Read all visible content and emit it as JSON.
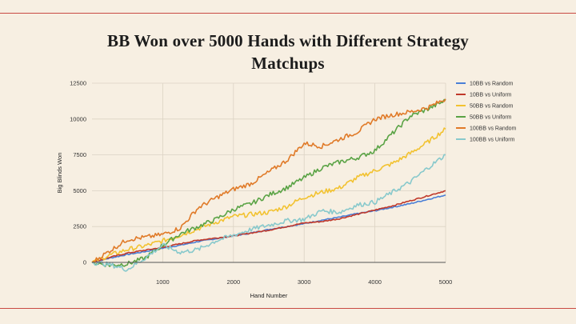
{
  "slide": {
    "title_line1": "BB Won over 5000 Hands with Different Strategy",
    "title_line2": "Matchups"
  },
  "chart_data": {
    "type": "line",
    "xlabel": "Hand Number",
    "ylabel": "Big Blinds Won",
    "xlim": [
      0,
      5000
    ],
    "ylim": [
      0,
      12500
    ],
    "x_ticks": [
      1000,
      2000,
      3000,
      4000,
      5000
    ],
    "y_ticks": [
      0,
      2500,
      5000,
      7500,
      10000,
      12500
    ],
    "grid": true,
    "legend_position": "right",
    "x": [
      0,
      250,
      500,
      750,
      1000,
      1250,
      1500,
      1750,
      2000,
      2250,
      2500,
      2750,
      3000,
      3250,
      3500,
      3750,
      4000,
      4250,
      4500,
      4750,
      5000
    ],
    "series": [
      {
        "name": "10BB vs Random",
        "color": "#4a7fd6",
        "values": [
          0,
          300,
          550,
          750,
          1000,
          1200,
          1450,
          1650,
          1850,
          2050,
          2300,
          2500,
          2700,
          2950,
          3150,
          3400,
          3600,
          3850,
          4100,
          4400,
          4700
        ]
      },
      {
        "name": "10BB vs Uniform",
        "color": "#c0392b",
        "values": [
          0,
          350,
          650,
          850,
          1050,
          1300,
          1550,
          1700,
          1850,
          2050,
          2250,
          2500,
          2750,
          2850,
          3050,
          3350,
          3650,
          3950,
          4300,
          4650,
          5000
        ]
      },
      {
        "name": "50BB vs Random",
        "color": "#f2c230",
        "values": [
          0,
          500,
          900,
          1150,
          1500,
          1900,
          2350,
          2800,
          3200,
          3350,
          3500,
          3900,
          4550,
          4900,
          5200,
          5900,
          6400,
          6900,
          7600,
          8400,
          9300
        ]
      },
      {
        "name": "50BB vs Uniform",
        "color": "#5aa345",
        "values": [
          0,
          -200,
          -100,
          300,
          1200,
          2000,
          2500,
          3000,
          3700,
          4100,
          4700,
          5200,
          5900,
          6600,
          7000,
          7300,
          7800,
          9000,
          10200,
          10700,
          11300
        ]
      },
      {
        "name": "100BB vs Random",
        "color": "#e07a28",
        "values": [
          0,
          800,
          1600,
          1750,
          1950,
          2400,
          3800,
          4500,
          5100,
          5500,
          6300,
          7100,
          8300,
          8100,
          8600,
          9100,
          10000,
          10300,
          10500,
          10800,
          11400
        ]
      },
      {
        "name": "100BB vs Uniform",
        "color": "#88c9cc",
        "values": [
          0,
          -150,
          -500,
          300,
          1200,
          700,
          900,
          1500,
          1900,
          2300,
          2600,
          2900,
          3000,
          3600,
          3500,
          4000,
          4200,
          4900,
          5600,
          6600,
          7500
        ]
      }
    ]
  }
}
